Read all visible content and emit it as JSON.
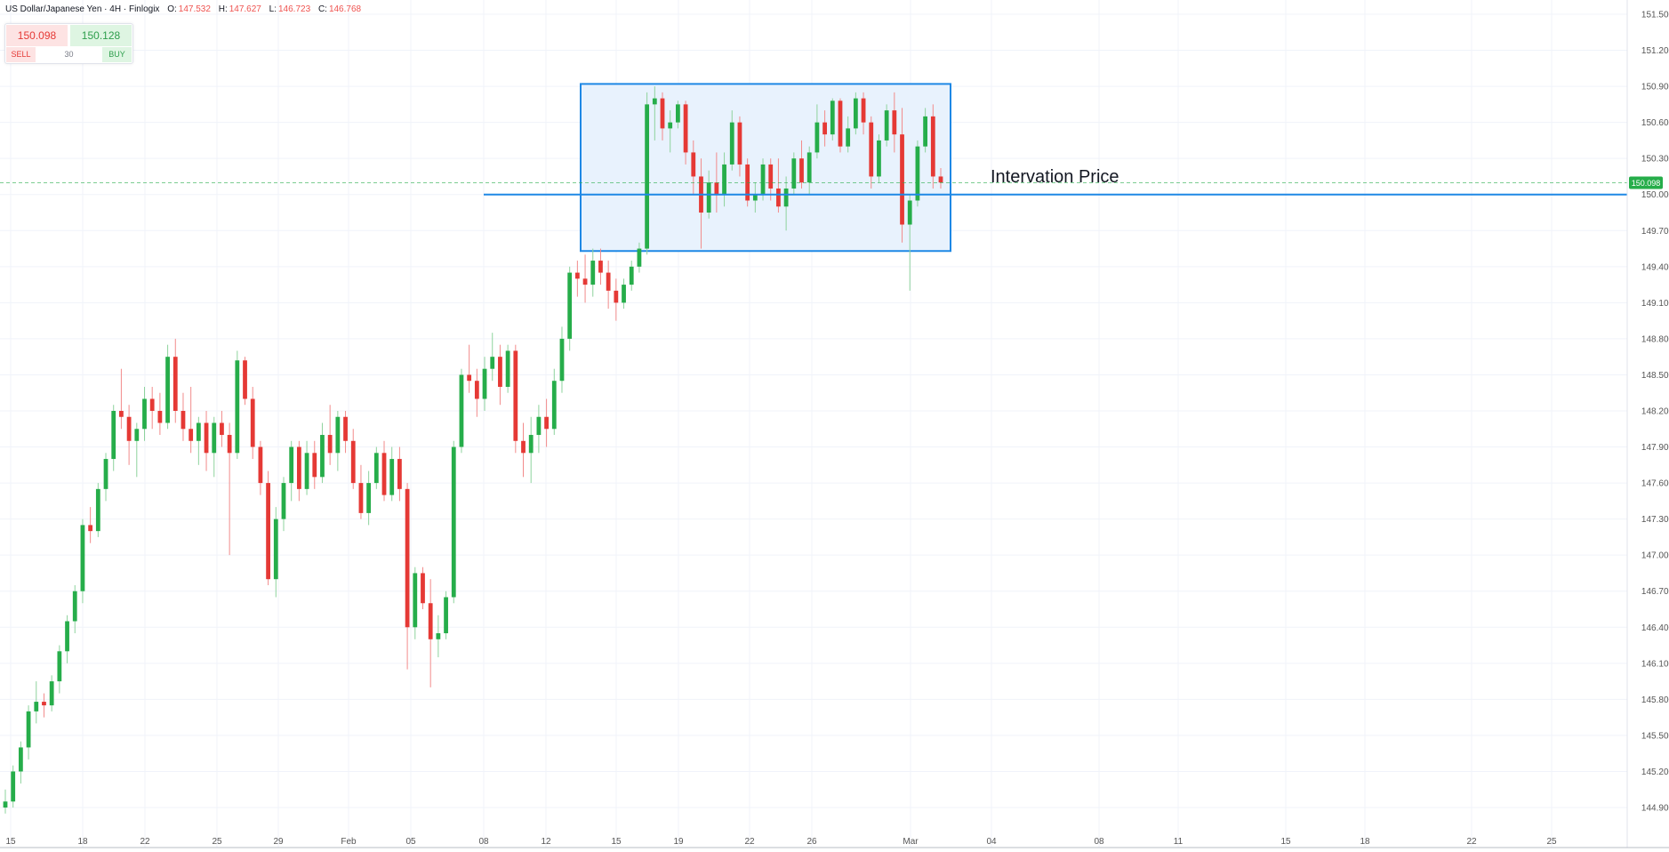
{
  "legend": {
    "title": "US Dollar/Japanese Yen · 4H · Finlogix",
    "o_label": "O:",
    "o": "147.532",
    "h_label": "H:",
    "h": "147.627",
    "l_label": "L:",
    "l": "146.723",
    "c_label": "C:",
    "c": "146.768"
  },
  "trade_panel": {
    "sell_price": "150.098",
    "buy_price": "150.128",
    "sell_label": "SELL",
    "buy_label": "BUY",
    "quantity": "30"
  },
  "colors": {
    "up": "#26ad4a",
    "down": "#e53935",
    "wick_up": "#8ed39d",
    "wick_down": "#f28b8b",
    "grid": "#f0f3fa",
    "box_stroke": "#1e88e5",
    "box_fill": "#e8f2fd",
    "hline": "#1e88e5",
    "price_tag": "#26ad4a",
    "axis_text": "#555555"
  },
  "chart_data": {
    "type": "candlestick",
    "timeframe": "4H",
    "ylim": [
      144.75,
      151.6
    ],
    "y_ticks": [
      "151.500",
      "151.200",
      "150.900",
      "150.600",
      "150.300",
      "150.000",
      "149.700",
      "149.400",
      "149.100",
      "148.800",
      "148.500",
      "148.200",
      "147.900",
      "147.600",
      "147.300",
      "147.000",
      "146.700",
      "146.400",
      "146.100",
      "145.800",
      "145.500",
      "145.200",
      "144.900"
    ],
    "x_ticks": [
      "15",
      "18",
      "22",
      "25",
      "29",
      "Feb",
      "05",
      "08",
      "12",
      "15",
      "19",
      "22",
      "26",
      "Mar",
      "04",
      "08",
      "11",
      "15",
      "18",
      "22",
      "25"
    ],
    "last_price": "150.098",
    "range_box": {
      "top": 150.92,
      "bottom": 149.53,
      "start_tick": "13.5",
      "end_tick": "02"
    },
    "horizontal_line": {
      "price": 150.0,
      "start_tick": "08"
    },
    "annotation": "Intervation Price",
    "ohlc": [
      [
        144.9,
        145.05,
        144.85,
        144.95
      ],
      [
        144.95,
        145.25,
        144.9,
        145.2
      ],
      [
        145.2,
        145.45,
        145.1,
        145.4
      ],
      [
        145.4,
        145.75,
        145.3,
        145.7
      ],
      [
        145.7,
        145.95,
        145.6,
        145.78
      ],
      [
        145.78,
        145.85,
        145.65,
        145.75
      ],
      [
        145.75,
        146.0,
        145.7,
        145.95
      ],
      [
        145.95,
        146.25,
        145.85,
        146.2
      ],
      [
        146.2,
        146.5,
        146.1,
        146.45
      ],
      [
        146.45,
        146.75,
        146.35,
        146.7
      ],
      [
        146.7,
        147.3,
        146.6,
        147.25
      ],
      [
        147.25,
        147.4,
        147.1,
        147.2
      ],
      [
        147.2,
        147.6,
        147.15,
        147.55
      ],
      [
        147.55,
        147.85,
        147.45,
        147.8
      ],
      [
        147.8,
        148.25,
        147.7,
        148.2
      ],
      [
        148.2,
        148.55,
        148.05,
        148.15
      ],
      [
        148.15,
        148.25,
        147.75,
        147.95
      ],
      [
        147.95,
        148.1,
        147.65,
        148.05
      ],
      [
        148.05,
        148.4,
        147.95,
        148.3
      ],
      [
        148.3,
        148.4,
        148.05,
        148.2
      ],
      [
        148.2,
        148.35,
        148.0,
        148.1
      ],
      [
        148.1,
        148.75,
        148.05,
        148.65
      ],
      [
        148.65,
        148.8,
        148.1,
        148.2
      ],
      [
        148.2,
        148.35,
        147.95,
        148.05
      ],
      [
        148.05,
        148.4,
        147.85,
        147.95
      ],
      [
        147.95,
        148.15,
        147.75,
        148.1
      ],
      [
        148.1,
        148.2,
        147.7,
        147.85
      ],
      [
        147.85,
        148.15,
        147.65,
        148.1
      ],
      [
        148.1,
        148.2,
        147.9,
        148.0
      ],
      [
        148.0,
        148.1,
        147.0,
        147.85
      ],
      [
        147.85,
        148.7,
        147.8,
        148.62
      ],
      [
        148.62,
        148.65,
        148.25,
        148.3
      ],
      [
        148.3,
        148.4,
        147.8,
        147.9
      ],
      [
        147.9,
        147.95,
        147.5,
        147.6
      ],
      [
        147.6,
        147.7,
        146.75,
        146.8
      ],
      [
        146.8,
        147.4,
        146.65,
        147.3
      ],
      [
        147.3,
        147.65,
        147.2,
        147.6
      ],
      [
        147.6,
        147.95,
        147.45,
        147.9
      ],
      [
        147.9,
        147.95,
        147.45,
        147.55
      ],
      [
        147.55,
        147.95,
        147.5,
        147.85
      ],
      [
        147.85,
        147.95,
        147.55,
        147.65
      ],
      [
        147.65,
        148.1,
        147.6,
        148.0
      ],
      [
        148.0,
        148.25,
        147.75,
        147.85
      ],
      [
        147.85,
        148.2,
        147.7,
        148.15
      ],
      [
        148.15,
        148.2,
        147.85,
        147.95
      ],
      [
        147.95,
        148.05,
        147.55,
        147.6
      ],
      [
        147.6,
        147.75,
        147.3,
        147.35
      ],
      [
        147.35,
        147.7,
        147.25,
        147.6
      ],
      [
        147.6,
        147.9,
        147.55,
        147.85
      ],
      [
        147.85,
        147.95,
        147.45,
        147.5
      ],
      [
        147.5,
        147.9,
        147.45,
        147.8
      ],
      [
        147.8,
        147.9,
        147.45,
        147.55
      ],
      [
        147.55,
        147.6,
        146.05,
        146.4
      ],
      [
        146.4,
        146.9,
        146.3,
        146.85
      ],
      [
        146.85,
        146.9,
        146.55,
        146.6
      ],
      [
        146.6,
        146.8,
        145.9,
        146.3
      ],
      [
        146.3,
        146.5,
        146.15,
        146.35
      ],
      [
        146.35,
        146.7,
        146.3,
        146.65
      ],
      [
        146.65,
        147.95,
        146.6,
        147.9
      ],
      [
        147.9,
        148.55,
        147.85,
        148.5
      ],
      [
        148.5,
        148.75,
        148.35,
        148.45
      ],
      [
        148.45,
        148.55,
        148.15,
        148.3
      ],
      [
        148.3,
        148.65,
        148.2,
        148.55
      ],
      [
        148.55,
        148.85,
        148.45,
        148.65
      ],
      [
        148.65,
        148.75,
        148.25,
        148.4
      ],
      [
        148.4,
        148.75,
        148.35,
        148.7
      ],
      [
        148.7,
        148.75,
        147.85,
        147.95
      ],
      [
        147.95,
        148.1,
        147.65,
        147.85
      ],
      [
        147.85,
        148.15,
        147.6,
        148.0
      ],
      [
        148.0,
        148.25,
        147.85,
        148.15
      ],
      [
        148.15,
        148.3,
        147.9,
        148.05
      ],
      [
        148.05,
        148.55,
        148.0,
        148.45
      ],
      [
        148.45,
        148.9,
        148.35,
        148.8
      ],
      [
        148.8,
        149.4,
        148.7,
        149.35
      ],
      [
        149.35,
        149.45,
        149.15,
        149.3
      ],
      [
        149.3,
        149.5,
        149.1,
        149.25
      ],
      [
        149.25,
        149.55,
        149.15,
        149.45
      ],
      [
        149.45,
        149.55,
        149.25,
        149.35
      ],
      [
        149.35,
        149.45,
        149.05,
        149.2
      ],
      [
        149.2,
        149.3,
        148.95,
        149.1
      ],
      [
        149.1,
        149.3,
        149.05,
        149.25
      ],
      [
        149.25,
        149.45,
        149.2,
        149.4
      ],
      [
        149.4,
        149.6,
        149.35,
        149.55
      ],
      [
        149.55,
        150.85,
        149.5,
        150.75
      ],
      [
        150.75,
        150.9,
        150.45,
        150.8
      ],
      [
        150.8,
        150.85,
        150.45,
        150.55
      ],
      [
        150.55,
        150.7,
        150.35,
        150.6
      ],
      [
        150.6,
        150.78,
        150.55,
        150.75
      ],
      [
        150.75,
        150.78,
        150.25,
        150.35
      ],
      [
        150.35,
        150.45,
        150.0,
        150.15
      ],
      [
        150.15,
        150.3,
        149.55,
        149.85
      ],
      [
        149.85,
        150.2,
        149.8,
        150.1
      ],
      [
        150.1,
        150.35,
        149.85,
        150.0
      ],
      [
        150.0,
        150.35,
        149.9,
        150.25
      ],
      [
        150.25,
        150.7,
        150.2,
        150.6
      ],
      [
        150.6,
        150.65,
        150.15,
        150.25
      ],
      [
        150.25,
        150.3,
        149.9,
        149.95
      ],
      [
        149.95,
        150.1,
        149.85,
        150.0
      ],
      [
        150.0,
        150.3,
        149.95,
        150.25
      ],
      [
        150.25,
        150.3,
        149.95,
        150.05
      ],
      [
        150.05,
        150.3,
        149.85,
        149.9
      ],
      [
        149.9,
        150.15,
        149.7,
        150.05
      ],
      [
        150.05,
        150.35,
        150.0,
        150.3
      ],
      [
        150.3,
        150.45,
        150.05,
        150.1
      ],
      [
        150.1,
        150.4,
        150.0,
        150.35
      ],
      [
        150.35,
        150.75,
        150.3,
        150.6
      ],
      [
        150.6,
        150.7,
        150.4,
        150.5
      ],
      [
        150.5,
        150.8,
        150.45,
        150.78
      ],
      [
        150.78,
        150.8,
        150.35,
        150.4
      ],
      [
        150.4,
        150.65,
        150.35,
        150.55
      ],
      [
        150.55,
        150.85,
        150.5,
        150.8
      ],
      [
        150.8,
        150.85,
        150.5,
        150.6
      ],
      [
        150.6,
        150.65,
        150.05,
        150.15
      ],
      [
        150.15,
        150.5,
        150.1,
        150.45
      ],
      [
        150.45,
        150.75,
        150.4,
        150.7
      ],
      [
        150.7,
        150.85,
        150.35,
        150.5
      ],
      [
        150.5,
        150.72,
        149.6,
        149.75
      ],
      [
        149.75,
        150.0,
        149.2,
        149.95
      ],
      [
        149.95,
        150.45,
        149.9,
        150.4
      ],
      [
        150.4,
        150.72,
        150.35,
        150.65
      ],
      [
        150.65,
        150.75,
        150.05,
        150.15
      ],
      [
        150.15,
        150.22,
        150.05,
        150.1
      ]
    ]
  }
}
